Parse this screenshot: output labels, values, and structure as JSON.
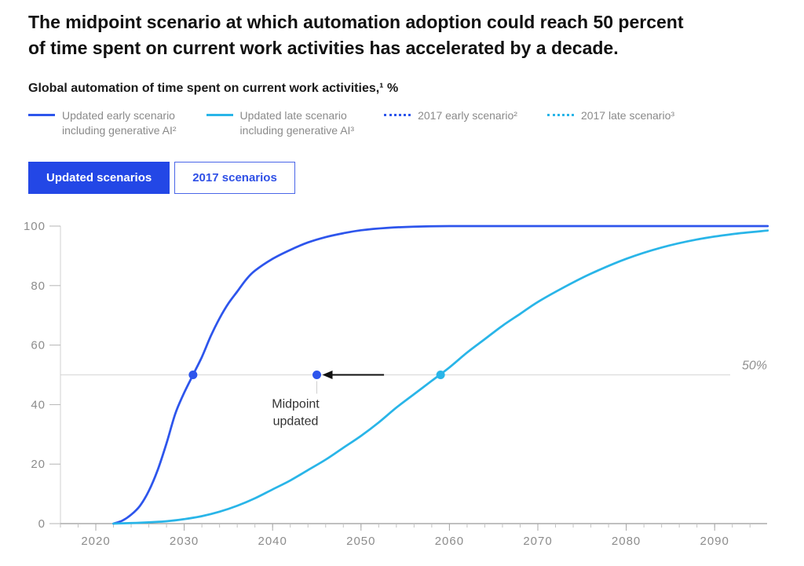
{
  "header": {
    "title_lines": [
      "The midpoint scenario at which automation adoption could reach 50 percent",
      "of time spent on current work activities has accelerated by a decade."
    ],
    "subtitle": "Global automation of time spent on current work activities,¹ %"
  },
  "legend": {
    "items": [
      {
        "style": "solid",
        "color": "#2d55ec",
        "lines": [
          "Updated early scenario",
          "including generative AI²"
        ]
      },
      {
        "style": "solid",
        "color": "#29b5e8",
        "lines": [
          "Updated late scenario",
          "including generative AI³"
        ]
      },
      {
        "style": "dotted",
        "color": "#2d55ec",
        "lines": [
          "2017 early scenario²"
        ]
      },
      {
        "style": "dotted",
        "color": "#29b5e8",
        "lines": [
          "2017 late scenario³"
        ]
      }
    ]
  },
  "toggle": {
    "buttons": [
      {
        "label": "Updated scenarios",
        "state": "active"
      },
      {
        "label": "2017 scenarios",
        "state": "inactive"
      }
    ]
  },
  "colors": {
    "accent_blue": "#2347e6",
    "early_blue": "#2d55ec",
    "late_cyan": "#29b5e8",
    "arrow_black": "#111111",
    "grid_gray": "#dcdcdc",
    "axis_gray": "#9a9a9a",
    "label_gray": "#8c8c8c"
  },
  "chart_data": {
    "type": "line",
    "title": "Global automation of time spent on current work activities, %",
    "x_axis": {
      "min": 2016,
      "max": 2096,
      "minor_tick_step": 2,
      "major_ticks": [
        2020,
        2030,
        2040,
        2050,
        2060,
        2070,
        2080,
        2090
      ]
    },
    "y_axis": {
      "min": 0,
      "max": 100,
      "ticks": [
        0,
        20,
        40,
        60,
        80,
        100
      ]
    },
    "reference_line": {
      "value": 50,
      "label": "50%"
    },
    "series": [
      {
        "name": "Updated early scenario including generative AI²",
        "color": "#2d55ec",
        "dash": "solid",
        "points": [
          [
            2022,
            0
          ],
          [
            2023,
            1
          ],
          [
            2024,
            3
          ],
          [
            2025,
            6
          ],
          [
            2026,
            11
          ],
          [
            2027,
            18
          ],
          [
            2028,
            27
          ],
          [
            2029,
            37
          ],
          [
            2030,
            44
          ],
          [
            2031,
            50
          ],
          [
            2032,
            56
          ],
          [
            2033,
            63
          ],
          [
            2034,
            69
          ],
          [
            2035,
            74
          ],
          [
            2036,
            78
          ],
          [
            2037,
            82
          ],
          [
            2038,
            85
          ],
          [
            2040,
            89
          ],
          [
            2042,
            92
          ],
          [
            2044,
            94.5
          ],
          [
            2046,
            96.3
          ],
          [
            2048,
            97.6
          ],
          [
            2050,
            98.6
          ],
          [
            2053,
            99.4
          ],
          [
            2056,
            99.8
          ],
          [
            2060,
            100
          ],
          [
            2065,
            100
          ],
          [
            2070,
            100
          ],
          [
            2075,
            100
          ],
          [
            2080,
            100
          ],
          [
            2085,
            100
          ],
          [
            2090,
            100
          ],
          [
            2096,
            100
          ]
        ]
      },
      {
        "name": "Updated late scenario including generative AI³",
        "color": "#29b5e8",
        "dash": "solid",
        "points": [
          [
            2022,
            0
          ],
          [
            2025,
            0.3
          ],
          [
            2028,
            0.8
          ],
          [
            2030,
            1.5
          ],
          [
            2032,
            2.5
          ],
          [
            2034,
            4
          ],
          [
            2036,
            6
          ],
          [
            2038,
            8.5
          ],
          [
            2040,
            11.5
          ],
          [
            2042,
            14.5
          ],
          [
            2044,
            18
          ],
          [
            2046,
            21.5
          ],
          [
            2048,
            25.5
          ],
          [
            2050,
            29.5
          ],
          [
            2052,
            34
          ],
          [
            2054,
            39
          ],
          [
            2056,
            43.5
          ],
          [
            2058,
            48
          ],
          [
            2060,
            52.5
          ],
          [
            2062,
            57.5
          ],
          [
            2064,
            62
          ],
          [
            2066,
            66.5
          ],
          [
            2068,
            70.5
          ],
          [
            2070,
            74.5
          ],
          [
            2073,
            79.5
          ],
          [
            2076,
            84
          ],
          [
            2080,
            89
          ],
          [
            2084,
            92.8
          ],
          [
            2088,
            95.5
          ],
          [
            2092,
            97.3
          ],
          [
            2096,
            98.5
          ]
        ]
      }
    ],
    "markers": [
      {
        "series": "updated-early-midpoint",
        "year": 2031,
        "value": 50,
        "color": "#2d55ec"
      },
      {
        "series": "midpoint-updated",
        "year": 2045,
        "value": 50,
        "color": "#2d55ec"
      },
      {
        "series": "updated-late-midpoint",
        "year": 2059,
        "value": 50,
        "color": "#29b5e8"
      }
    ],
    "annotation": {
      "text_lines": [
        "Midpoint",
        "updated"
      ],
      "arrow_from_year": 2052.6,
      "arrow_to_year": 2045
    }
  }
}
